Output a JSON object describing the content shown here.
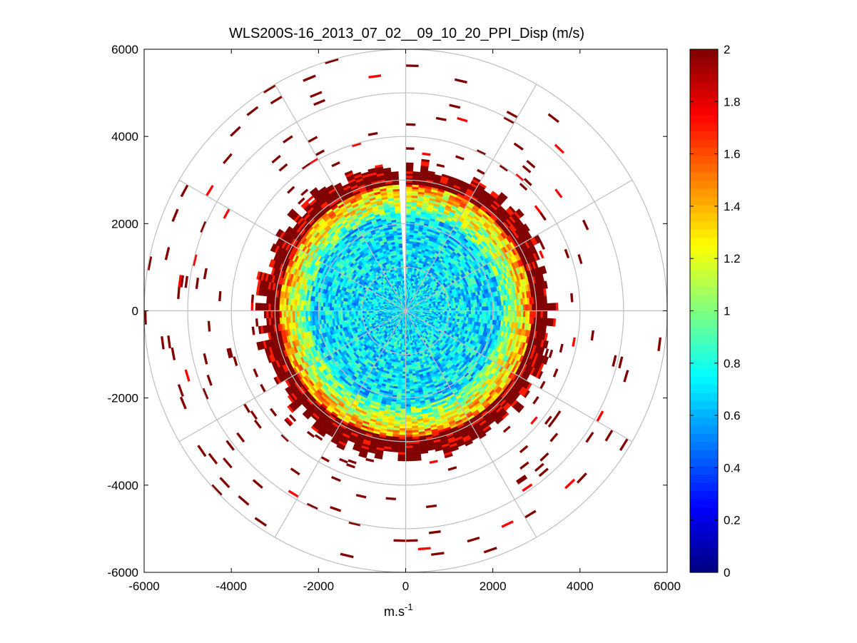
{
  "chart_data": {
    "type": "heatmap",
    "subtype": "polar-ppi",
    "title": "WLS200S-16_2013_07_02__09_10_20_PPI_Disp (m/s)",
    "xlabel": "m.s",
    "xlabel_sup": "-1",
    "ylabel": "",
    "xlim": [
      -6000,
      6000
    ],
    "ylim": [
      -6000,
      6000
    ],
    "x_ticks": [
      -6000,
      -4000,
      -2000,
      0,
      2000,
      4000,
      6000
    ],
    "y_ticks": [
      6000,
      4000,
      2000,
      0,
      -2000,
      -4000,
      -6000
    ],
    "x_tick_labels": [
      "-6000",
      "-4000",
      "-2000",
      "0",
      "2000",
      "4000",
      "6000"
    ],
    "y_tick_labels": [
      "6000",
      "4000",
      "2000",
      "0",
      "-2000",
      "-4000",
      "-6000"
    ],
    "range_rings": [
      1000,
      2000,
      3000,
      4000,
      5000,
      6000
    ],
    "spoke_angles_deg": [
      0,
      30,
      60,
      90,
      120,
      150,
      180,
      210,
      240,
      270,
      300,
      330
    ],
    "colorbar": {
      "colormap": "jet",
      "clim": [
        0,
        2
      ],
      "ticks": [
        0,
        0.2,
        0.4,
        0.6,
        0.8,
        1,
        1.2,
        1.4,
        1.6,
        1.8,
        2
      ],
      "tick_labels": [
        "0",
        "0.2",
        "0.4",
        "0.6",
        "0.8",
        "1",
        "1.2",
        "1.4",
        "1.6",
        "1.8",
        "2"
      ]
    },
    "field_description": {
      "data_gap_azimuth_deg": [
        357,
        0
      ],
      "inner_core": {
        "range_m": [
          0,
          2200
        ],
        "typical_value": 0.7
      },
      "transition": {
        "range_m": [
          2200,
          2900
        ],
        "typical_value": 1.1
      },
      "outer_ring": {
        "range_m": [
          2900,
          3500
        ],
        "typical_value": 2.0
      },
      "sparse_returns": {
        "range_m": [
          3500,
          6000
        ],
        "typical_value": 2.0
      }
    }
  }
}
